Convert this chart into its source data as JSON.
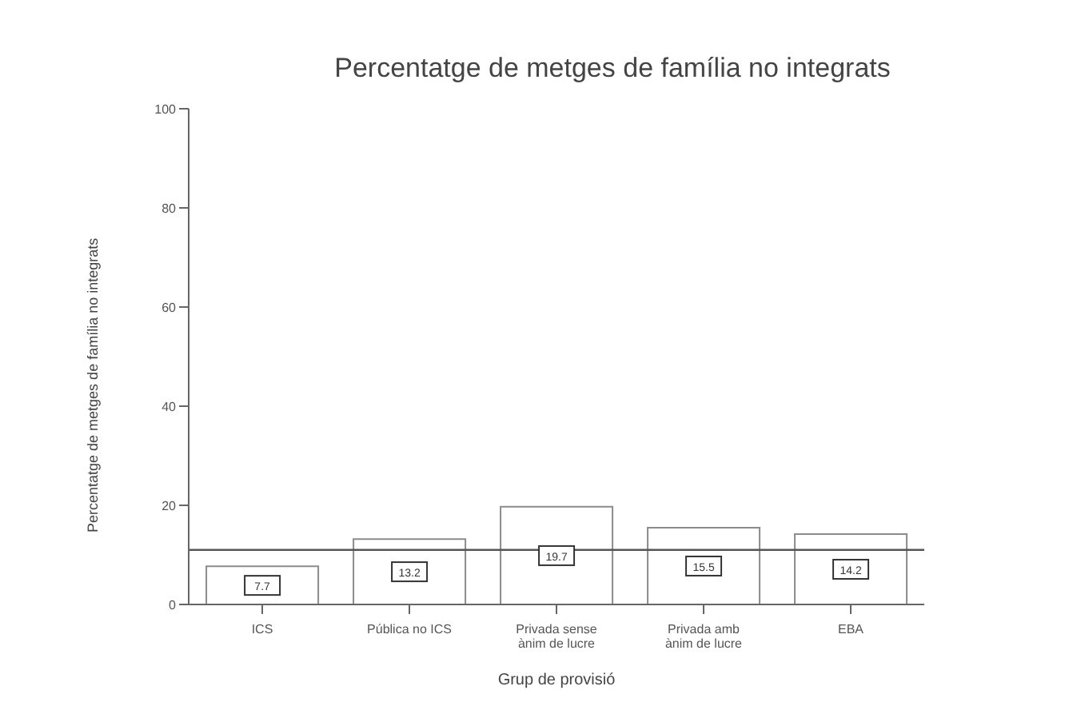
{
  "chart_data": {
    "type": "bar",
    "title": "Percentatge de metges de família no integrats",
    "xlabel": "Grup de provisió",
    "ylabel": "Percentatge de metges de família no integrats",
    "categories": [
      "ICS",
      "Pública no ICS",
      "Privada sense ànim de lucre",
      "Privada amb ànim de lucre",
      "EBA"
    ],
    "values": [
      7.7,
      13.2,
      19.7,
      15.5,
      14.2
    ],
    "color": "#8c8c8c",
    "ylim": [
      0,
      100
    ],
    "yticks": [
      0,
      20,
      40,
      60,
      80,
      100
    ],
    "grid": false,
    "data_labels": true,
    "ref_lines": [
      {
        "axis": "y",
        "value": 11,
        "color": "#555555"
      }
    ]
  }
}
